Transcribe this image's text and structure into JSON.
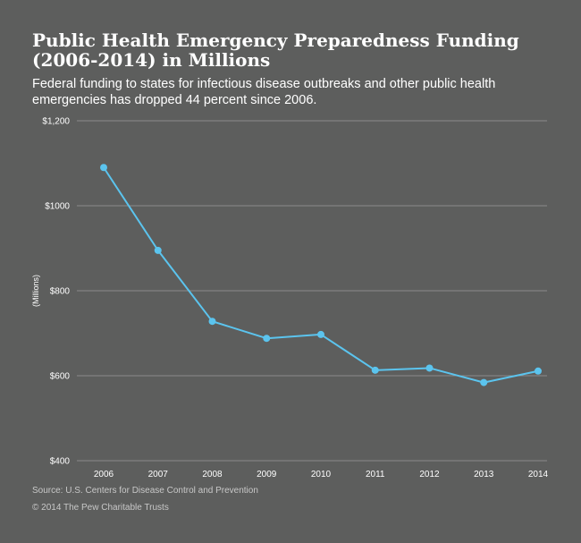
{
  "header": {
    "title_line1": "Public Health Emergency Preparedness Funding",
    "title_line2": "(2006-2014) in Millions",
    "subtitle": "Federal funding to states for infectious disease outbreaks and other public health emergencies has dropped 44 percent since 2006."
  },
  "chart_data": {
    "type": "line",
    "title": "Public Health Emergency Preparedness Funding (2006-2014) in Millions",
    "ylabel": "(Millions)",
    "xlabel": "",
    "categories": [
      "2006",
      "2007",
      "2008",
      "2009",
      "2010",
      "2011",
      "2012",
      "2013",
      "2014"
    ],
    "series": [
      {
        "values": [
          1090,
          895,
          728,
          688,
          697,
          613,
          618,
          584,
          611
        ]
      }
    ],
    "ylim": [
      400,
      1200
    ],
    "yticks": [
      400,
      600,
      800,
      1000,
      1200
    ],
    "ytick_labels": [
      "$400",
      "$600",
      "$800",
      "$1000",
      "$1,200"
    ],
    "grid": true,
    "line_color": "#5bc4ee",
    "grid_color": "#8a8b8a"
  },
  "footer": {
    "source": "Source: U.S. Centers for Disease Control and Prevention",
    "copyright": "© 2014 The Pew Charitable Trusts"
  }
}
